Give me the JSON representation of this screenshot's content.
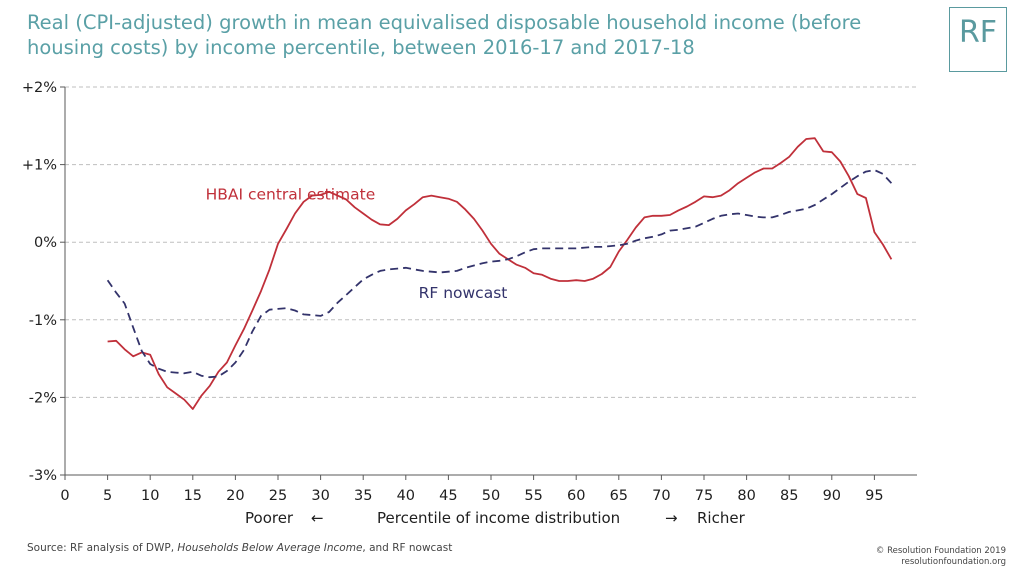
{
  "title": "Real (CPI-adjusted) growth in mean equivalised disposable household income (before housing costs) by income percentile, between 2016-17 and 2017-18",
  "logo_text": "RF",
  "x_description": {
    "left": "Poorer",
    "left_arrow": "←",
    "center": "Percentile of income distribution",
    "right_arrow": "→",
    "right": "Richer"
  },
  "source": {
    "prefix": "Source: RF analysis of DWP, ",
    "italic": "Households Below Average Income",
    "suffix": ", and RF nowcast"
  },
  "copyright": {
    "line1": "© Resolution Foundation 2019",
    "line2": "resolutionfoundation.org"
  },
  "colors": {
    "title": "#5aa0a6",
    "hbai": "#c0303a",
    "nowcast": "#33336b",
    "grid": "#bfbfbf",
    "axis": "#595959"
  },
  "chart_data": {
    "type": "line",
    "xlim": [
      0,
      100
    ],
    "ylim": [
      -3,
      2
    ],
    "x_ticks": [
      0,
      5,
      10,
      15,
      20,
      25,
      30,
      35,
      40,
      45,
      50,
      55,
      60,
      65,
      70,
      75,
      80,
      85,
      90,
      95
    ],
    "y_ticks": [
      {
        "value": 2,
        "label": "+2%"
      },
      {
        "value": 1,
        "label": "+1%"
      },
      {
        "value": 0,
        "label": "0%"
      },
      {
        "value": -1,
        "label": "-1%"
      },
      {
        "value": -2,
        "label": "-2%"
      },
      {
        "value": -3,
        "label": "-3%"
      }
    ],
    "grid": "horizontal-dashed",
    "series": [
      {
        "name": "HBAI central estimate",
        "style": "solid",
        "label_position": [
          16.5,
          0.55
        ],
        "points": [
          [
            5,
            -1.28
          ],
          [
            6,
            -1.27
          ],
          [
            7,
            -1.38
          ],
          [
            8,
            -1.47
          ],
          [
            9,
            -1.42
          ],
          [
            10,
            -1.45
          ],
          [
            11,
            -1.7
          ],
          [
            12,
            -1.87
          ],
          [
            13,
            -1.95
          ],
          [
            14,
            -2.03
          ],
          [
            15,
            -2.15
          ],
          [
            16,
            -1.98
          ],
          [
            17,
            -1.85
          ],
          [
            18,
            -1.67
          ],
          [
            19,
            -1.55
          ],
          [
            20,
            -1.33
          ],
          [
            21,
            -1.12
          ],
          [
            22,
            -0.88
          ],
          [
            23,
            -0.63
          ],
          [
            24,
            -0.35
          ],
          [
            25,
            -0.02
          ],
          [
            26,
            0.17
          ],
          [
            27,
            0.37
          ],
          [
            28,
            0.52
          ],
          [
            29,
            0.6
          ],
          [
            30,
            0.61
          ],
          [
            31,
            0.65
          ],
          [
            32,
            0.6
          ],
          [
            33,
            0.55
          ],
          [
            34,
            0.45
          ],
          [
            35,
            0.37
          ],
          [
            36,
            0.29
          ],
          [
            37,
            0.23
          ],
          [
            38,
            0.22
          ],
          [
            39,
            0.3
          ],
          [
            40,
            0.41
          ],
          [
            41,
            0.49
          ],
          [
            42,
            0.58
          ],
          [
            43,
            0.6
          ],
          [
            44,
            0.58
          ],
          [
            45,
            0.56
          ],
          [
            46,
            0.52
          ],
          [
            47,
            0.42
          ],
          [
            48,
            0.3
          ],
          [
            49,
            0.15
          ],
          [
            50,
            -0.02
          ],
          [
            51,
            -0.15
          ],
          [
            52,
            -0.22
          ],
          [
            53,
            -0.29
          ],
          [
            54,
            -0.33
          ],
          [
            55,
            -0.4
          ],
          [
            56,
            -0.42
          ],
          [
            57,
            -0.47
          ],
          [
            58,
            -0.5
          ],
          [
            59,
            -0.5
          ],
          [
            60,
            -0.49
          ],
          [
            61,
            -0.5
          ],
          [
            62,
            -0.47
          ],
          [
            63,
            -0.41
          ],
          [
            64,
            -0.32
          ],
          [
            65,
            -0.12
          ],
          [
            66,
            0.03
          ],
          [
            67,
            0.19
          ],
          [
            68,
            0.32
          ],
          [
            69,
            0.34
          ],
          [
            70,
            0.34
          ],
          [
            71,
            0.35
          ],
          [
            72,
            0.41
          ],
          [
            73,
            0.46
          ],
          [
            74,
            0.52
          ],
          [
            75,
            0.59
          ],
          [
            76,
            0.58
          ],
          [
            77,
            0.6
          ],
          [
            78,
            0.67
          ],
          [
            79,
            0.76
          ],
          [
            80,
            0.83
          ],
          [
            81,
            0.9
          ],
          [
            82,
            0.95
          ],
          [
            83,
            0.95
          ],
          [
            84,
            1.02
          ],
          [
            85,
            1.1
          ],
          [
            86,
            1.23
          ],
          [
            87,
            1.33
          ],
          [
            88,
            1.34
          ],
          [
            89,
            1.17
          ],
          [
            90,
            1.16
          ],
          [
            91,
            1.04
          ],
          [
            92,
            0.85
          ],
          [
            93,
            0.62
          ],
          [
            94,
            0.57
          ],
          [
            95,
            0.13
          ],
          [
            96,
            -0.03
          ],
          [
            97,
            -0.22
          ]
        ]
      },
      {
        "name": "RF nowcast",
        "style": "dashed",
        "label_position": [
          41.5,
          -0.72
        ],
        "points": [
          [
            5,
            -0.49
          ],
          [
            6,
            -0.65
          ],
          [
            7,
            -0.79
          ],
          [
            8,
            -1.1
          ],
          [
            9,
            -1.4
          ],
          [
            10,
            -1.57
          ],
          [
            11,
            -1.63
          ],
          [
            12,
            -1.67
          ],
          [
            13,
            -1.68
          ],
          [
            14,
            -1.69
          ],
          [
            15,
            -1.67
          ],
          [
            16,
            -1.72
          ],
          [
            17,
            -1.74
          ],
          [
            18,
            -1.73
          ],
          [
            19,
            -1.66
          ],
          [
            20,
            -1.55
          ],
          [
            21,
            -1.39
          ],
          [
            22,
            -1.15
          ],
          [
            23,
            -0.95
          ],
          [
            24,
            -0.87
          ],
          [
            25,
            -0.86
          ],
          [
            26,
            -0.85
          ],
          [
            27,
            -0.88
          ],
          [
            28,
            -0.93
          ],
          [
            29,
            -0.94
          ],
          [
            30,
            -0.95
          ],
          [
            31,
            -0.9
          ],
          [
            32,
            -0.78
          ],
          [
            33,
            -0.68
          ],
          [
            34,
            -0.58
          ],
          [
            35,
            -0.48
          ],
          [
            36,
            -0.42
          ],
          [
            37,
            -0.37
          ],
          [
            38,
            -0.35
          ],
          [
            39,
            -0.34
          ],
          [
            40,
            -0.33
          ],
          [
            41,
            -0.35
          ],
          [
            42,
            -0.37
          ],
          [
            43,
            -0.38
          ],
          [
            44,
            -0.39
          ],
          [
            45,
            -0.38
          ],
          [
            46,
            -0.37
          ],
          [
            47,
            -0.33
          ],
          [
            48,
            -0.3
          ],
          [
            49,
            -0.27
          ],
          [
            50,
            -0.25
          ],
          [
            51,
            -0.24
          ],
          [
            52,
            -0.22
          ],
          [
            53,
            -0.18
          ],
          [
            54,
            -0.13
          ],
          [
            55,
            -0.09
          ],
          [
            56,
            -0.08
          ],
          [
            57,
            -0.08
          ],
          [
            58,
            -0.08
          ],
          [
            59,
            -0.08
          ],
          [
            60,
            -0.08
          ],
          [
            61,
            -0.07
          ],
          [
            62,
            -0.06
          ],
          [
            63,
            -0.06
          ],
          [
            64,
            -0.05
          ],
          [
            65,
            -0.04
          ],
          [
            66,
            -0.02
          ],
          [
            67,
            0.02
          ],
          [
            68,
            0.05
          ],
          [
            69,
            0.07
          ],
          [
            70,
            0.1
          ],
          [
            71,
            0.15
          ],
          [
            72,
            0.16
          ],
          [
            73,
            0.18
          ],
          [
            74,
            0.2
          ],
          [
            75,
            0.25
          ],
          [
            76,
            0.3
          ],
          [
            77,
            0.34
          ],
          [
            78,
            0.36
          ],
          [
            79,
            0.37
          ],
          [
            80,
            0.35
          ],
          [
            81,
            0.33
          ],
          [
            82,
            0.32
          ],
          [
            83,
            0.32
          ],
          [
            84,
            0.35
          ],
          [
            85,
            0.39
          ],
          [
            86,
            0.41
          ],
          [
            87,
            0.43
          ],
          [
            88,
            0.48
          ],
          [
            89,
            0.55
          ],
          [
            90,
            0.62
          ],
          [
            91,
            0.7
          ],
          [
            92,
            0.78
          ],
          [
            93,
            0.85
          ],
          [
            94,
            0.91
          ],
          [
            95,
            0.93
          ],
          [
            96,
            0.88
          ],
          [
            97,
            0.76
          ]
        ]
      }
    ]
  }
}
